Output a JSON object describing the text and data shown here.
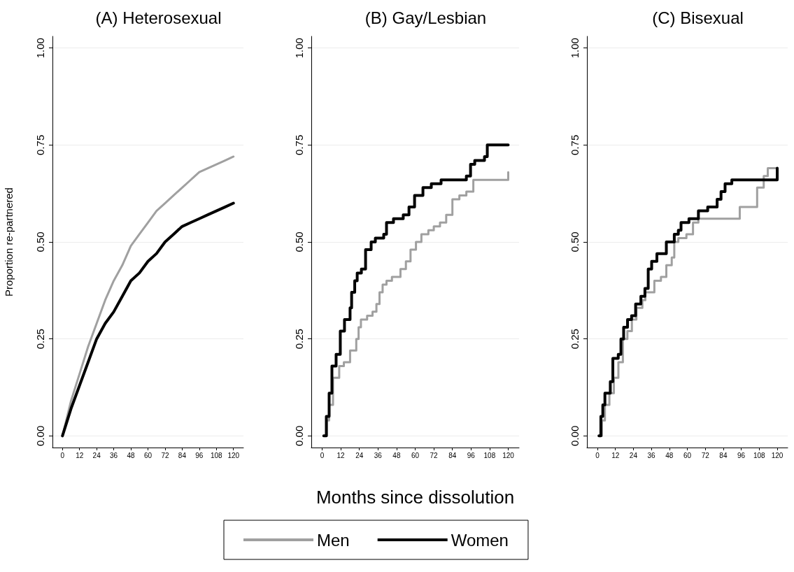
{
  "chart_data": [
    {
      "type": "line",
      "title": "(A) Heterosexual",
      "ylabel": "Proportion re-partnered",
      "xlim": [
        -7,
        127
      ],
      "xticks": [
        0,
        12,
        24,
        36,
        48,
        60,
        72,
        84,
        96,
        108,
        120
      ],
      "ylim": [
        -0.03,
        1.03
      ],
      "yticks": [
        {
          "value": 0,
          "label": "0.00"
        },
        {
          "value": 0.25,
          "label": "0.25"
        },
        {
          "value": 0.5,
          "label": "0.50"
        },
        {
          "value": 0.75,
          "label": "0.75"
        },
        {
          "value": 1,
          "label": "1.00"
        }
      ],
      "grid": "y",
      "legend": false,
      "series": [
        {
          "color": "#a0a0a0",
          "x": [
            0,
            6,
            12,
            18,
            24,
            30,
            36,
            42,
            48,
            54,
            60,
            66,
            72,
            78,
            84,
            90,
            96,
            102,
            108,
            114,
            120
          ],
          "values": [
            0,
            0.09,
            0.16,
            0.23,
            0.29,
            0.35,
            0.4,
            0.44,
            0.49,
            0.52,
            0.55,
            0.58,
            0.6,
            0.62,
            0.64,
            0.66,
            0.68,
            0.69,
            0.7,
            0.71,
            0.72
          ]
        },
        {
          "color": "#000000",
          "x": [
            0,
            6,
            12,
            18,
            24,
            30,
            36,
            42,
            48,
            54,
            60,
            66,
            72,
            78,
            84,
            90,
            96,
            102,
            108,
            114,
            120
          ],
          "values": [
            0,
            0.07,
            0.13,
            0.19,
            0.25,
            0.29,
            0.32,
            0.36,
            0.4,
            0.42,
            0.45,
            0.47,
            0.5,
            0.52,
            0.54,
            0.55,
            0.56,
            0.57,
            0.58,
            0.59,
            0.6
          ]
        }
      ]
    },
    {
      "type": "step",
      "title": "(B) Gay/Lesbian",
      "xlabel": "Months since dissolution",
      "xlim": [
        -7,
        127
      ],
      "xticks": [
        0,
        12,
        24,
        36,
        48,
        60,
        72,
        84,
        96,
        108,
        120
      ],
      "ylim": [
        -0.03,
        1.03
      ],
      "yticks": [
        {
          "value": 0,
          "label": "0.00"
        },
        {
          "value": 0.25,
          "label": "0.25"
        },
        {
          "value": 0.5,
          "label": "0.50"
        },
        {
          "value": 0.75,
          "label": "0.75"
        },
        {
          "value": 1,
          "label": "1.00"
        }
      ],
      "grid": "y",
      "legend": "bottom",
      "series": [
        {
          "name": "Men",
          "color": "#a0a0a0",
          "x": [
            1,
            3,
            4.5,
            7,
            11,
            14,
            18,
            22,
            23.5,
            25,
            29,
            32.5,
            35,
            37,
            39,
            41.5,
            45,
            50.5,
            54,
            57,
            60.5,
            64,
            68.5,
            72,
            76,
            80,
            84,
            88.5,
            93,
            97.5,
            119,
            120
          ],
          "values": [
            0,
            0.04,
            0.08,
            0.15,
            0.18,
            0.19,
            0.22,
            0.25,
            0.28,
            0.3,
            0.31,
            0.32,
            0.34,
            0.37,
            0.39,
            0.4,
            0.41,
            0.43,
            0.45,
            0.48,
            0.5,
            0.52,
            0.53,
            0.54,
            0.55,
            0.57,
            0.61,
            0.62,
            0.63,
            0.66,
            0.66,
            0.68
          ]
        },
        {
          "name": "Women",
          "color": "#000000",
          "x": [
            1,
            2.7,
            4.5,
            6.3,
            9,
            11.7,
            14.4,
            18,
            19,
            21,
            22.6,
            25.3,
            28,
            31.6,
            34.3,
            39.7,
            41.5,
            46,
            52.3,
            56,
            59.6,
            62.3,
            65,
            70.4,
            76.7,
            93,
            95.7,
            98.4,
            104.7,
            106.5,
            120
          ],
          "values": [
            0,
            0.05,
            0.11,
            0.18,
            0.21,
            0.27,
            0.3,
            0.33,
            0.37,
            0.4,
            0.42,
            0.43,
            0.48,
            0.5,
            0.51,
            0.52,
            0.55,
            0.56,
            0.57,
            0.59,
            0.62,
            0.62,
            0.64,
            0.65,
            0.66,
            0.67,
            0.7,
            0.71,
            0.72,
            0.75,
            0.75
          ]
        }
      ]
    },
    {
      "type": "step",
      "title": "(C) Bisexual",
      "xlim": [
        -7,
        127
      ],
      "xticks": [
        0,
        12,
        24,
        36,
        48,
        60,
        72,
        84,
        96,
        108,
        120
      ],
      "ylim": [
        -0.03,
        1.03
      ],
      "yticks": [
        {
          "value": 0,
          "label": "0.00"
        },
        {
          "value": 0.25,
          "label": "0.25"
        },
        {
          "value": 0.5,
          "label": "0.50"
        },
        {
          "value": 0.75,
          "label": "0.75"
        },
        {
          "value": 1,
          "label": "1.00"
        }
      ],
      "grid": "y",
      "legend": false,
      "series": [
        {
          "color": "#a0a0a0",
          "x": [
            1,
            3,
            5,
            8,
            11,
            14,
            17,
            20,
            23,
            26,
            30,
            32,
            35.3,
            38,
            42.4,
            46,
            49.6,
            51.3,
            54,
            59.4,
            63.8,
            67.4,
            95,
            106.6,
            111,
            113.7,
            120
          ],
          "values": [
            0,
            0.04,
            0.08,
            0.11,
            0.15,
            0.19,
            0.25,
            0.27,
            0.3,
            0.33,
            0.35,
            0.37,
            0.37,
            0.4,
            0.41,
            0.44,
            0.46,
            0.5,
            0.51,
            0.52,
            0.55,
            0.56,
            0.59,
            0.64,
            0.67,
            0.69,
            0.69
          ]
        },
        {
          "color": "#000000",
          "x": [
            1,
            2.3,
            3.6,
            5,
            8.6,
            10.3,
            13.9,
            15.7,
            17.5,
            20.1,
            22.8,
            25.5,
            29,
            31.7,
            33.9,
            36.2,
            39.7,
            46,
            51.3,
            54,
            55.8,
            61.1,
            67.4,
            73.6,
            79.9,
            82.5,
            85.2,
            89.7,
            120
          ],
          "values": [
            0,
            0.05,
            0.08,
            0.11,
            0.14,
            0.2,
            0.21,
            0.25,
            0.28,
            0.3,
            0.31,
            0.34,
            0.36,
            0.38,
            0.43,
            0.45,
            0.47,
            0.5,
            0.52,
            0.53,
            0.55,
            0.56,
            0.58,
            0.59,
            0.61,
            0.63,
            0.65,
            0.66,
            0.69
          ]
        }
      ]
    }
  ]
}
